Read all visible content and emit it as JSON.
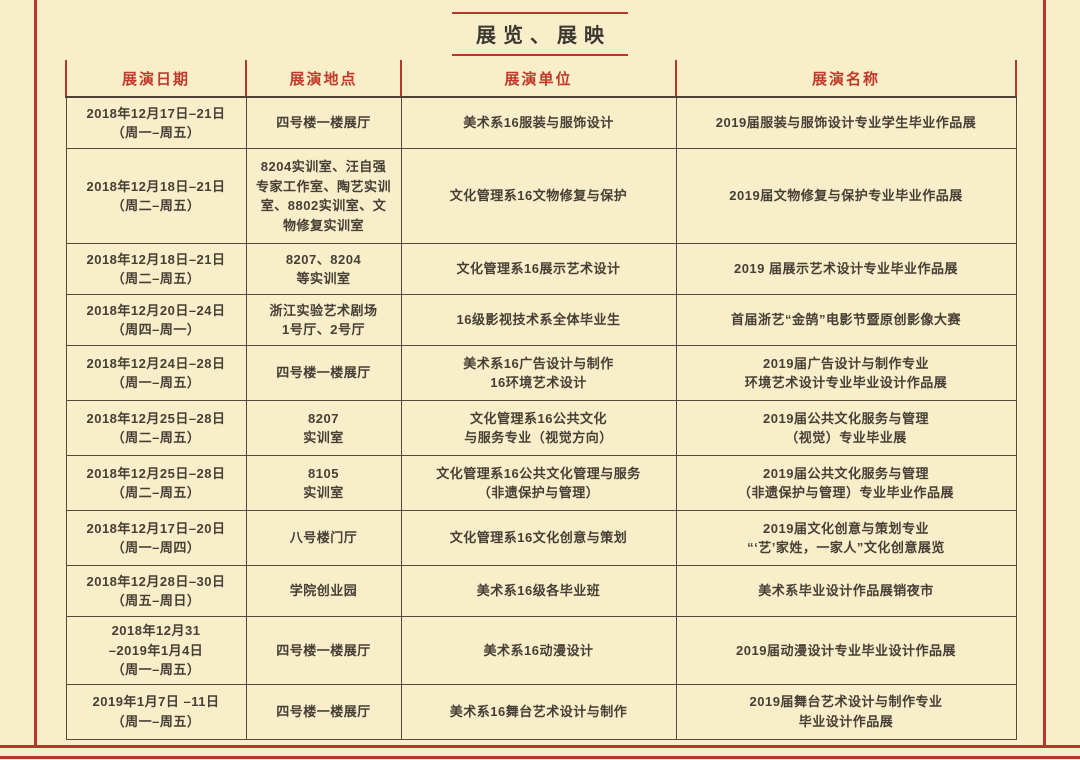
{
  "page": {
    "title": "展览、展映",
    "bg_color": "#f8eec9",
    "accent_red": "#b6372a",
    "text_color": "#453f35"
  },
  "table": {
    "headers": [
      "展演日期",
      "展演地点",
      "展演单位",
      "展演名称"
    ],
    "rows": [
      {
        "date": "2018年12月17日–21日\n（周一–周五）",
        "location": "四号楼一楼展厅",
        "unit": "美术系16服装与服饰设计",
        "name": "2019届服装与服饰设计专业学生毕业作品展"
      },
      {
        "date": "2018年12月18日–21日\n（周二–周五）",
        "location": "8204实训室、汪自强专家工作室、陶艺实训室、8802实训室、文物修复实训室",
        "unit": "文化管理系16文物修复与保护",
        "name": "2019届文物修复与保护专业毕业作品展"
      },
      {
        "date": "2018年12月18日–21日\n（周二–周五）",
        "location": "8207、8204\n等实训室",
        "unit": "文化管理系16展示艺术设计",
        "name": "2019 届展示艺术设计专业毕业作品展"
      },
      {
        "date": "2018年12月20日–24日\n（周四–周一）",
        "location": "浙江实验艺术剧场\n1号厅、2号厅",
        "unit": "16级影视技术系全体毕业生",
        "name": "首届浙艺“金鹄”电影节暨原创影像大赛"
      },
      {
        "date": "2018年12月24日–28日\n（周一–周五）",
        "location": "四号楼一楼展厅",
        "unit": "美术系16广告设计与制作\n16环境艺术设计",
        "name": "2019届广告设计与制作专业\n环境艺术设计专业毕业设计作品展"
      },
      {
        "date": "2018年12月25日–28日\n（周二–周五）",
        "location": "8207\n实训室",
        "unit": "文化管理系16公共文化\n与服务专业（视觉方向）",
        "name": "2019届公共文化服务与管理\n（视觉）专业毕业展"
      },
      {
        "date": "2018年12月25日–28日\n（周二–周五）",
        "location": "8105\n实训室",
        "unit": "文化管理系16公共文化管理与服务\n（非遗保护与管理）",
        "name": "2019届公共文化服务与管理\n（非遗保护与管理）专业毕业作品展"
      },
      {
        "date": "2018年12月17日–20日\n（周一–周四）",
        "location": "八号楼门厅",
        "unit": "文化管理系16文化创意与策划",
        "name": "2019届文化创意与策划专业\n“‘艺’家姓，一家人”文化创意展览"
      },
      {
        "date": "2018年12月28日–30日\n（周五–周日）",
        "location": "学院创业园",
        "unit": "美术系16级各毕业班",
        "name": "美术系毕业设计作品展销夜市"
      },
      {
        "date": "2018年12月31\n–2019年1月4日\n（周一–周五）",
        "location": "四号楼一楼展厅",
        "unit": "美术系16动漫设计",
        "name": "2019届动漫设计专业毕业设计作品展"
      },
      {
        "date": "2019年1月7日 –11日\n（周一–周五）",
        "location": "四号楼一楼展厅",
        "unit": "美术系16舞台艺术设计与制作",
        "name": "2019届舞台艺术设计与制作专业\n毕业设计作品展"
      }
    ]
  }
}
